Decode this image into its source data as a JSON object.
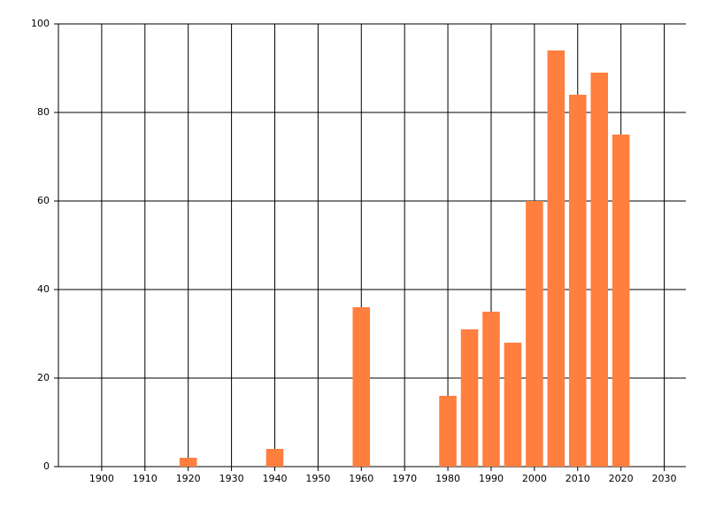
{
  "chart_data": {
    "type": "bar",
    "x": [
      1920,
      1940,
      1960,
      1980,
      1985,
      1990,
      1995,
      2000,
      2005,
      2010,
      2015,
      2020
    ],
    "values": [
      2,
      4,
      36,
      16,
      31,
      35,
      28,
      60,
      94,
      84,
      89,
      75
    ],
    "color": "#ff7f3f",
    "xlim": [
      1890,
      2035
    ],
    "xticks": [
      1900,
      1910,
      1920,
      1930,
      1940,
      1950,
      1960,
      1970,
      1980,
      1990,
      2000,
      2010,
      2020,
      2030
    ],
    "ylim": [
      0,
      100
    ],
    "yticks": [
      0,
      20,
      40,
      60,
      80,
      100
    ],
    "bar_width": 4,
    "grid": true
  }
}
